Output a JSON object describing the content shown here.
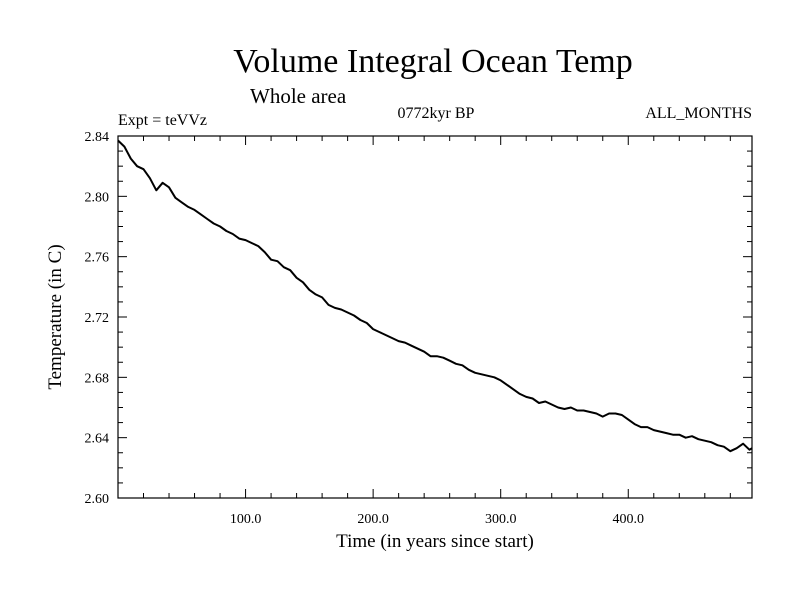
{
  "chart_data": {
    "type": "line",
    "title": "Volume Integral Ocean Temp",
    "subtitle": "Whole area",
    "annotations": {
      "left": "Expt = teVVz",
      "center": "0772kyr BP",
      "right": "ALL_MONTHS"
    },
    "xlabel": "Time (in years since start)",
    "ylabel": "Temperature (in C)",
    "xlim": [
      0,
      497
    ],
    "ylim": [
      2.6,
      2.84
    ],
    "x_ticks": [
      100,
      200,
      300,
      400
    ],
    "x_tick_labels": [
      "100.0",
      "200.0",
      "300.0",
      "400.0"
    ],
    "y_ticks": [
      2.6,
      2.64,
      2.68,
      2.72,
      2.76,
      2.8,
      2.84
    ],
    "y_tick_labels": [
      "2.60",
      "2.64",
      "2.68",
      "2.72",
      "2.76",
      "2.80",
      "2.84"
    ],
    "grid": false,
    "series": [
      {
        "color": "#000000",
        "x": [
          0,
          5,
          10,
          15,
          20,
          25,
          30,
          35,
          40,
          45,
          50,
          55,
          60,
          65,
          70,
          75,
          80,
          85,
          90,
          95,
          100,
          105,
          110,
          115,
          120,
          125,
          130,
          135,
          140,
          145,
          150,
          155,
          160,
          165,
          170,
          175,
          180,
          185,
          190,
          195,
          200,
          205,
          210,
          215,
          220,
          225,
          230,
          235,
          240,
          245,
          250,
          255,
          260,
          265,
          270,
          275,
          280,
          285,
          290,
          295,
          300,
          305,
          310,
          315,
          320,
          325,
          330,
          335,
          340,
          345,
          350,
          355,
          360,
          365,
          370,
          375,
          380,
          385,
          390,
          395,
          400,
          405,
          410,
          415,
          420,
          425,
          430,
          435,
          440,
          445,
          450,
          455,
          460,
          465,
          470,
          475,
          480,
          485,
          490,
          495,
          497
        ],
        "y": [
          2.837,
          2.833,
          2.825,
          2.82,
          2.818,
          2.812,
          2.804,
          2.809,
          2.806,
          2.799,
          2.796,
          2.793,
          2.791,
          2.788,
          2.785,
          2.782,
          2.78,
          2.777,
          2.775,
          2.772,
          2.771,
          2.769,
          2.767,
          2.763,
          2.758,
          2.757,
          2.753,
          2.751,
          2.746,
          2.743,
          2.738,
          2.735,
          2.733,
          2.728,
          2.726,
          2.725,
          2.723,
          2.721,
          2.718,
          2.716,
          2.712,
          2.71,
          2.708,
          2.706,
          2.704,
          2.703,
          2.701,
          2.699,
          2.697,
          2.694,
          2.694,
          2.693,
          2.691,
          2.689,
          2.688,
          2.685,
          2.683,
          2.682,
          2.681,
          2.68,
          2.678,
          2.675,
          2.672,
          2.669,
          2.667,
          2.666,
          2.663,
          2.664,
          2.662,
          2.66,
          2.659,
          2.66,
          2.658,
          2.658,
          2.657,
          2.656,
          2.654,
          2.656,
          2.656,
          2.655,
          2.652,
          2.649,
          2.647,
          2.647,
          2.645,
          2.644,
          2.643,
          2.642,
          2.642,
          2.64,
          2.641,
          2.639,
          2.638,
          2.637,
          2.635,
          2.634,
          2.631,
          2.633,
          2.636,
          2.632,
          2.633
        ]
      }
    ]
  }
}
